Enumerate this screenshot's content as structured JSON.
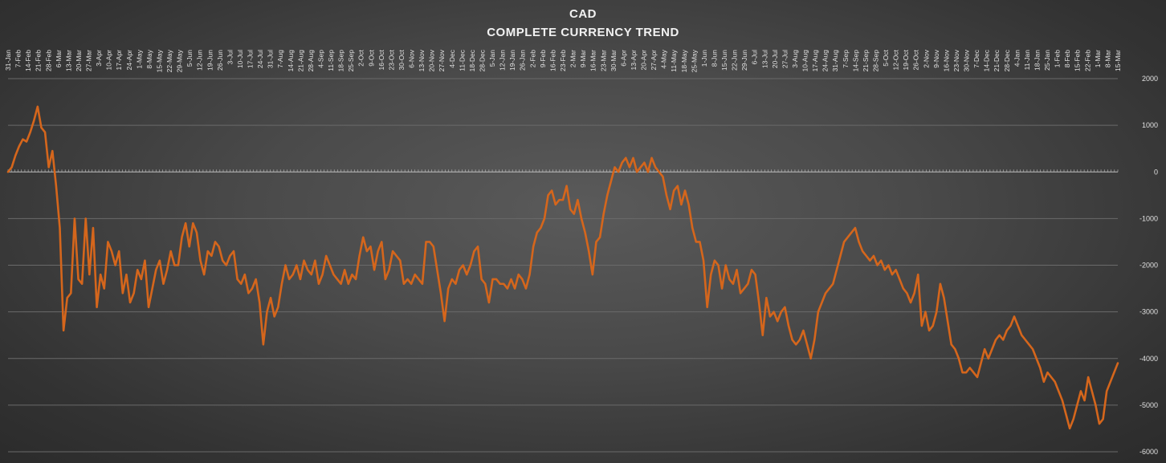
{
  "chart_data": {
    "type": "line",
    "title": "CAD",
    "subtitle": "COMPLETE CURRENCY TREND",
    "xlabel": "",
    "ylabel": "",
    "ylim": [
      -6000,
      2000
    ],
    "yticks": [
      2000,
      1000,
      0,
      -1000,
      -2000,
      -3000,
      -4000,
      -5000,
      -6000
    ],
    "grid": true,
    "legend": "none",
    "colors": {
      "line": "#d5661c",
      "grid": "#6a6a6a",
      "axis": "#bfbfbf",
      "text": "#e0e0e0"
    },
    "x_tick_labels": [
      "31-Jan",
      "7-Feb",
      "14-Feb",
      "21-Feb",
      "28-Feb",
      "6-Mar",
      "13-Mar",
      "20-Mar",
      "27-Mar",
      "3-Apr",
      "10-Apr",
      "17-Apr",
      "24-Apr",
      "1-May",
      "8-May",
      "15-May",
      "22-May",
      "29-May",
      "5-Jun",
      "12-Jun",
      "19-Jun",
      "26-Jun",
      "3-Jul",
      "10-Jul",
      "17-Jul",
      "24-Jul",
      "31-Jul",
      "7-Aug",
      "14-Aug",
      "21-Aug",
      "28-Aug",
      "4-Sep",
      "11-Sep",
      "18-Sep",
      "25-Sep",
      "2-Oct",
      "9-Oct",
      "16-Oct",
      "23-Oct",
      "30-Oct",
      "6-Nov",
      "13-Nov",
      "20-Nov",
      "27-Nov",
      "4-Dec",
      "11-Dec",
      "18-Dec",
      "28-Dec",
      "5-Jan",
      "12-Jan",
      "19-Jan",
      "26-Jan",
      "2-Feb",
      "9-Feb",
      "16-Feb",
      "23-Feb",
      "2-Mar",
      "9-Mar",
      "16-Mar",
      "23-Mar",
      "30-Mar",
      "6-Apr",
      "13-Apr",
      "20-Apr",
      "27-Apr",
      "4-May",
      "11-May",
      "18-May",
      "25-May",
      "1-Jun",
      "8-Jun",
      "15-Jun",
      "22-Jun",
      "29-Jun",
      "6-Jul",
      "13-Jul",
      "20-Jul",
      "27-Jul",
      "3-Aug",
      "10-Aug",
      "17-Aug",
      "24-Aug",
      "31-Aug",
      "7-Sep",
      "14-Sep",
      "21-Sep",
      "28-Sep",
      "5-Oct",
      "12-Oct",
      "19-Oct",
      "26-Oct",
      "2-Nov",
      "9-Nov",
      "16-Nov",
      "23-Nov",
      "30-Nov",
      "7-Dec",
      "14-Dec",
      "21-Dec",
      "28-Dec",
      "4-Jan",
      "11-Jan",
      "18-Jan",
      "25-Jan",
      "1-Feb",
      "8-Feb",
      "15-Feb",
      "22-Feb",
      "1-Mar",
      "8-Mar",
      "15-Mar"
    ],
    "series": [
      {
        "values": [
          0,
          100,
          350,
          550,
          700,
          650,
          850,
          1100,
          1400,
          950,
          850,
          100,
          450,
          -300,
          -1200,
          -3400,
          -2700,
          -2600,
          -1000,
          -2300,
          -2400,
          -1000,
          -2200,
          -1200,
          -2900,
          -2200,
          -2500,
          -1500,
          -1700,
          -2000,
          -1700,
          -2600,
          -2200,
          -2800,
          -2600,
          -2100,
          -2300,
          -1900,
          -2900,
          -2500,
          -2100,
          -1900,
          -2400,
          -2100,
          -1700,
          -2000,
          -2000,
          -1400,
          -1100,
          -1600,
          -1100,
          -1300,
          -1900,
          -2200,
          -1700,
          -1800,
          -1500,
          -1600,
          -1900,
          -2000,
          -1800,
          -1700,
          -2300,
          -2400,
          -2200,
          -2600,
          -2500,
          -2300,
          -2800,
          -3700,
          -3000,
          -2700,
          -3100,
          -2900,
          -2400,
          -2000,
          -2300,
          -2200,
          -2000,
          -2300,
          -1900,
          -2100,
          -2200,
          -1900,
          -2400,
          -2200,
          -1800,
          -2000,
          -2200,
          -2300,
          -2400,
          -2100,
          -2400,
          -2200,
          -2300,
          -1800,
          -1400,
          -1700,
          -1600,
          -2100,
          -1700,
          -1500,
          -2300,
          -2100,
          -1700,
          -1800,
          -1900,
          -2400,
          -2300,
          -2400,
          -2200,
          -2300,
          -2400,
          -1500,
          -1500,
          -1600,
          -2100,
          -2600,
          -3200,
          -2500,
          -2300,
          -2400,
          -2100,
          -2000,
          -2200,
          -2000,
          -1700,
          -1600,
          -2300,
          -2400,
          -2800,
          -2300,
          -2300,
          -2400,
          -2400,
          -2500,
          -2300,
          -2500,
          -2200,
          -2300,
          -2500,
          -2200,
          -1600,
          -1300,
          -1200,
          -1000,
          -500,
          -400,
          -700,
          -600,
          -600,
          -300,
          -800,
          -900,
          -600,
          -1000,
          -1300,
          -1700,
          -2200,
          -1500,
          -1400,
          -900,
          -500,
          -200,
          100,
          0,
          200,
          300,
          100,
          300,
          0,
          100,
          200,
          0,
          300,
          100,
          0,
          -100,
          -500,
          -800,
          -400,
          -300,
          -700,
          -400,
          -700,
          -1200,
          -1500,
          -1500,
          -1900,
          -2900,
          -2200,
          -1900,
          -2000,
          -2500,
          -2000,
          -2300,
          -2400,
          -2100,
          -2600,
          -2500,
          -2400,
          -2100,
          -2200,
          -2800,
          -3500,
          -2700,
          -3100,
          -3000,
          -3200,
          -3000,
          -2900,
          -3300,
          -3600,
          -3700,
          -3600,
          -3400,
          -3700,
          -4000,
          -3600,
          -3000,
          -2800,
          -2600,
          -2500,
          -2400,
          -2100,
          -1800,
          -1500,
          -1400,
          -1300,
          -1200,
          -1500,
          -1700,
          -1800,
          -1900,
          -1800,
          -2000,
          -1900,
          -2100,
          -2000,
          -2200,
          -2100,
          -2300,
          -2500,
          -2600,
          -2800,
          -2600,
          -2200,
          -3300,
          -3000,
          -3400,
          -3300,
          -3000,
          -2400,
          -2700,
          -3200,
          -3700,
          -3800,
          -4000,
          -4300,
          -4300,
          -4200,
          -4300,
          -4400,
          -4100,
          -3800,
          -4000,
          -3800,
          -3600,
          -3500,
          -3600,
          -3400,
          -3300,
          -3100,
          -3300,
          -3500,
          -3600,
          -3700,
          -3800,
          -4000,
          -4200,
          -4500,
          -4300,
          -4400,
          -4500,
          -4700,
          -4900,
          -5200,
          -5500,
          -5300,
          -5000,
          -4700,
          -4900,
          -4400,
          -4700,
          -5000,
          -5400,
          -5300,
          -4700,
          -4500,
          -4300,
          -4100
        ]
      }
    ]
  }
}
